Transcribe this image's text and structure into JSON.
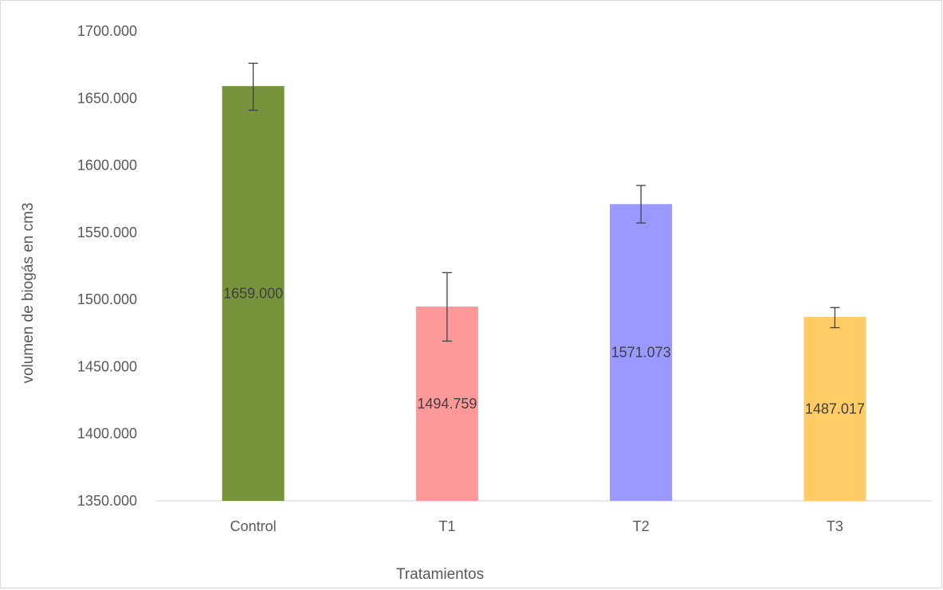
{
  "chart_data": {
    "type": "bar",
    "title": "",
    "xlabel": "Tratamientos",
    "ylabel": "volumen de biogás en cm3",
    "categories": [
      "Control",
      "T1",
      "T2",
      "T3"
    ],
    "values": [
      1659.0,
      1494.759,
      1571.073,
      1487.017
    ],
    "value_labels": [
      "1659.000",
      "1494.759",
      "1571.073",
      "1487.017"
    ],
    "error_bars": [
      {
        "low": 1641,
        "high": 1676
      },
      {
        "low": 1469,
        "high": 1520
      },
      {
        "low": 1557,
        "high": 1585
      },
      {
        "low": 1479,
        "high": 1494
      }
    ],
    "colors": [
      "#77933c",
      "#ff9999",
      "#9999ff",
      "#ffcc66"
    ],
    "ylim": [
      1350,
      1700
    ],
    "yticks": [
      1350,
      1400,
      1450,
      1500,
      1550,
      1600,
      1650,
      1700
    ],
    "ytick_labels": [
      "1350.000",
      "1400.000",
      "1450.000",
      "1500.000",
      "1550.000",
      "1600.000",
      "1650.000",
      "1700.000"
    ],
    "grid": false,
    "legend": "none"
  }
}
